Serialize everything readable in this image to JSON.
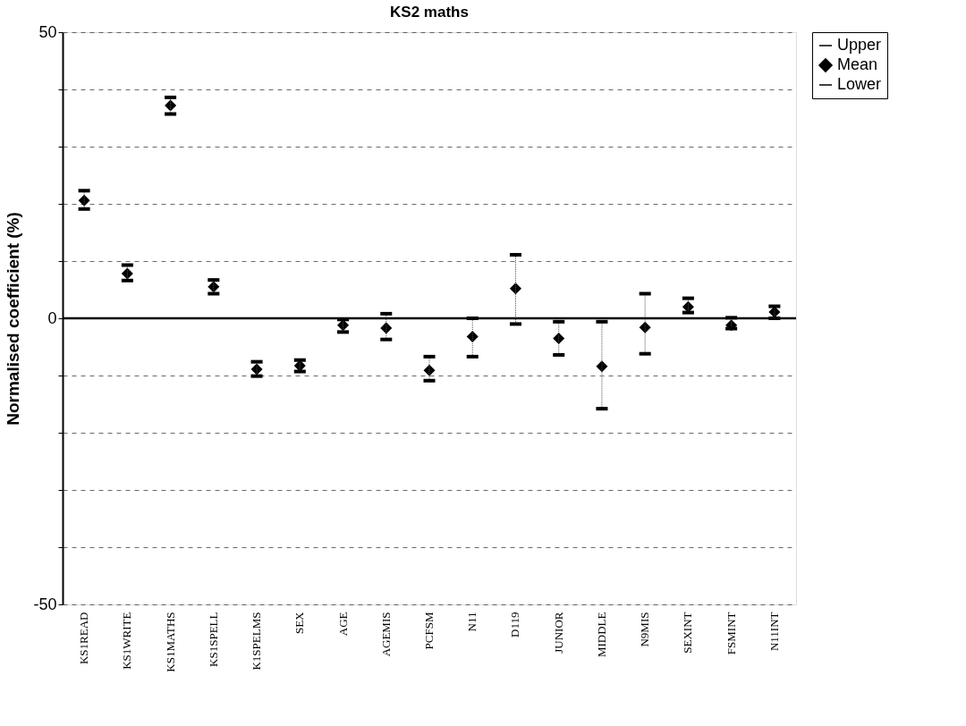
{
  "chart_data": {
    "type": "scatter",
    "title": "KS2 maths",
    "ylabel": "Normalised coefficient (%)",
    "categories": [
      "KS1READ",
      "KS1WRITE",
      "KS1MATHS",
      "KS1SPELL",
      "K1SPELMS",
      "SEX",
      "AGE",
      "AGEMIS",
      "PCFSM",
      "N11",
      "D119",
      "JUNIOR",
      "MIDDLE",
      "N9MIS",
      "SEXINT",
      "FSMINT",
      "N11INT"
    ],
    "series": [
      {
        "name": "Mean",
        "color": "#000000",
        "marker": "diamond",
        "values": [
          20.6,
          7.8,
          37.2,
          5.5,
          -8.9,
          -8.3,
          -1.2,
          -1.7,
          -9.1,
          -3.2,
          5.2,
          -3.5,
          -8.4,
          -1.6,
          2.0,
          -1.2,
          1.1
        ],
        "errors": [
          [
            19.1,
            22.3
          ],
          [
            6.6,
            9.3
          ],
          [
            35.7,
            38.6
          ],
          [
            4.3,
            6.7
          ],
          [
            -10.1,
            -7.6
          ],
          [
            -9.3,
            -7.3
          ],
          [
            -2.4,
            -0.2
          ],
          [
            -3.7,
            0.8
          ],
          [
            -10.9,
            -6.7
          ],
          [
            -6.7,
            0.0
          ],
          [
            -1.0,
            11.1
          ],
          [
            -6.4,
            -0.6
          ],
          [
            -15.8,
            -0.6
          ],
          [
            -6.2,
            4.3
          ],
          [
            1.0,
            3.5
          ],
          [
            -1.8,
            0.1
          ],
          [
            0.0,
            2.1
          ]
        ]
      }
    ],
    "annotations": [
      "Upper",
      "Lower"
    ],
    "ylim": [
      -50,
      50
    ],
    "yticks": [
      50,
      {
        "value": 40,
        "label": null
      },
      {
        "value": 30,
        "label": null
      },
      {
        "value": 20,
        "label": null
      },
      {
        "value": 10,
        "label": null
      },
      0,
      {
        "value": -10,
        "label": null
      },
      {
        "value": -20,
        "label": null
      },
      {
        "value": -30,
        "label": null
      },
      {
        "value": -40,
        "label": null
      },
      -50
    ],
    "ref_lines": [
      {
        "axis": "y",
        "value": 0,
        "label": null
      }
    ],
    "grid": "y",
    "legend": "right"
  }
}
